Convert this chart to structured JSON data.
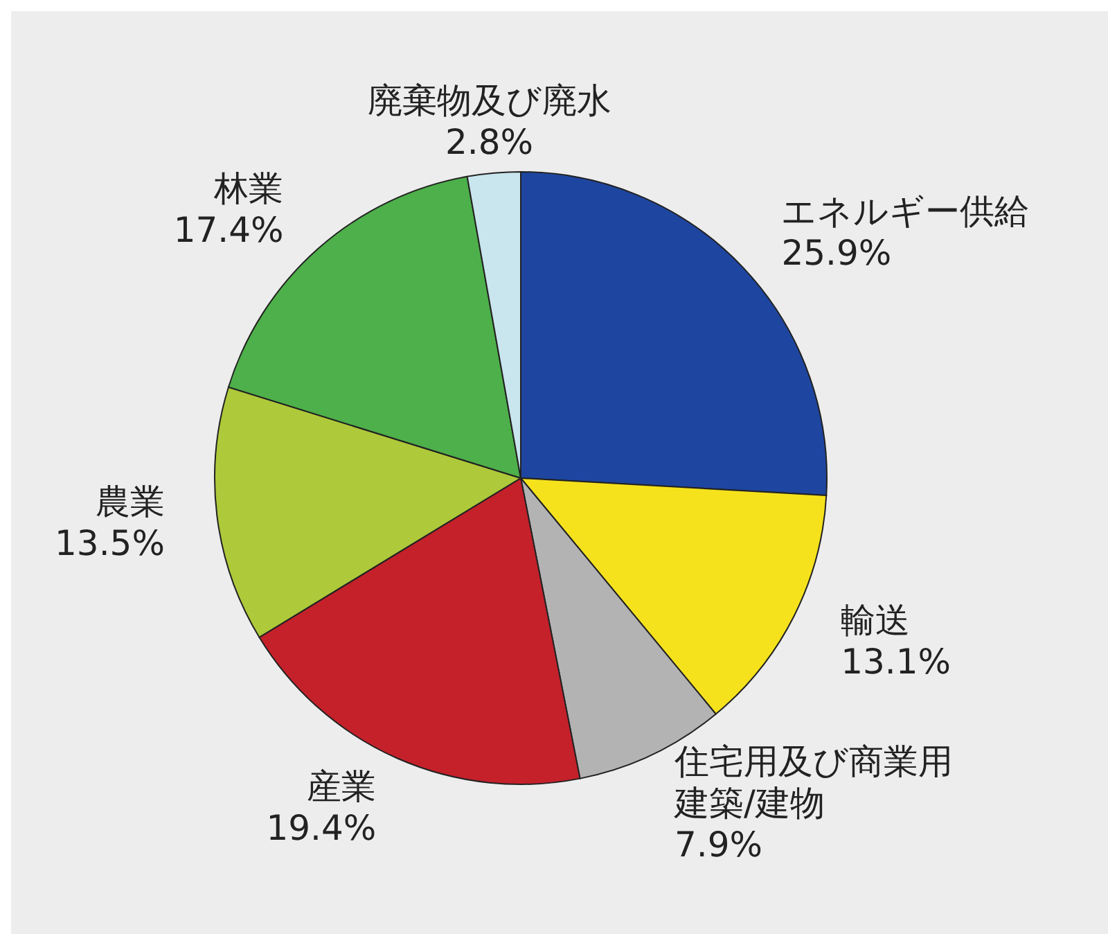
{
  "chart_data": {
    "type": "pie",
    "categories": [
      "エネルギー供給",
      "輸送",
      "住宅用及び商業用建築/建物",
      "産業",
      "農業",
      "林業",
      "廃棄物及び廃水"
    ],
    "values": [
      25.9,
      13.1,
      7.9,
      19.4,
      13.5,
      17.4,
      2.8
    ],
    "colors": [
      "#1e46a0",
      "#f5e21c",
      "#b3b3b3",
      "#c5212b",
      "#aec93a",
      "#4db04a",
      "#c9e5ee"
    ],
    "value_labels": [
      "25.9%",
      "13.1%",
      "7.9%",
      "19.4%",
      "13.5%",
      "17.4%",
      "2.8%"
    ]
  }
}
